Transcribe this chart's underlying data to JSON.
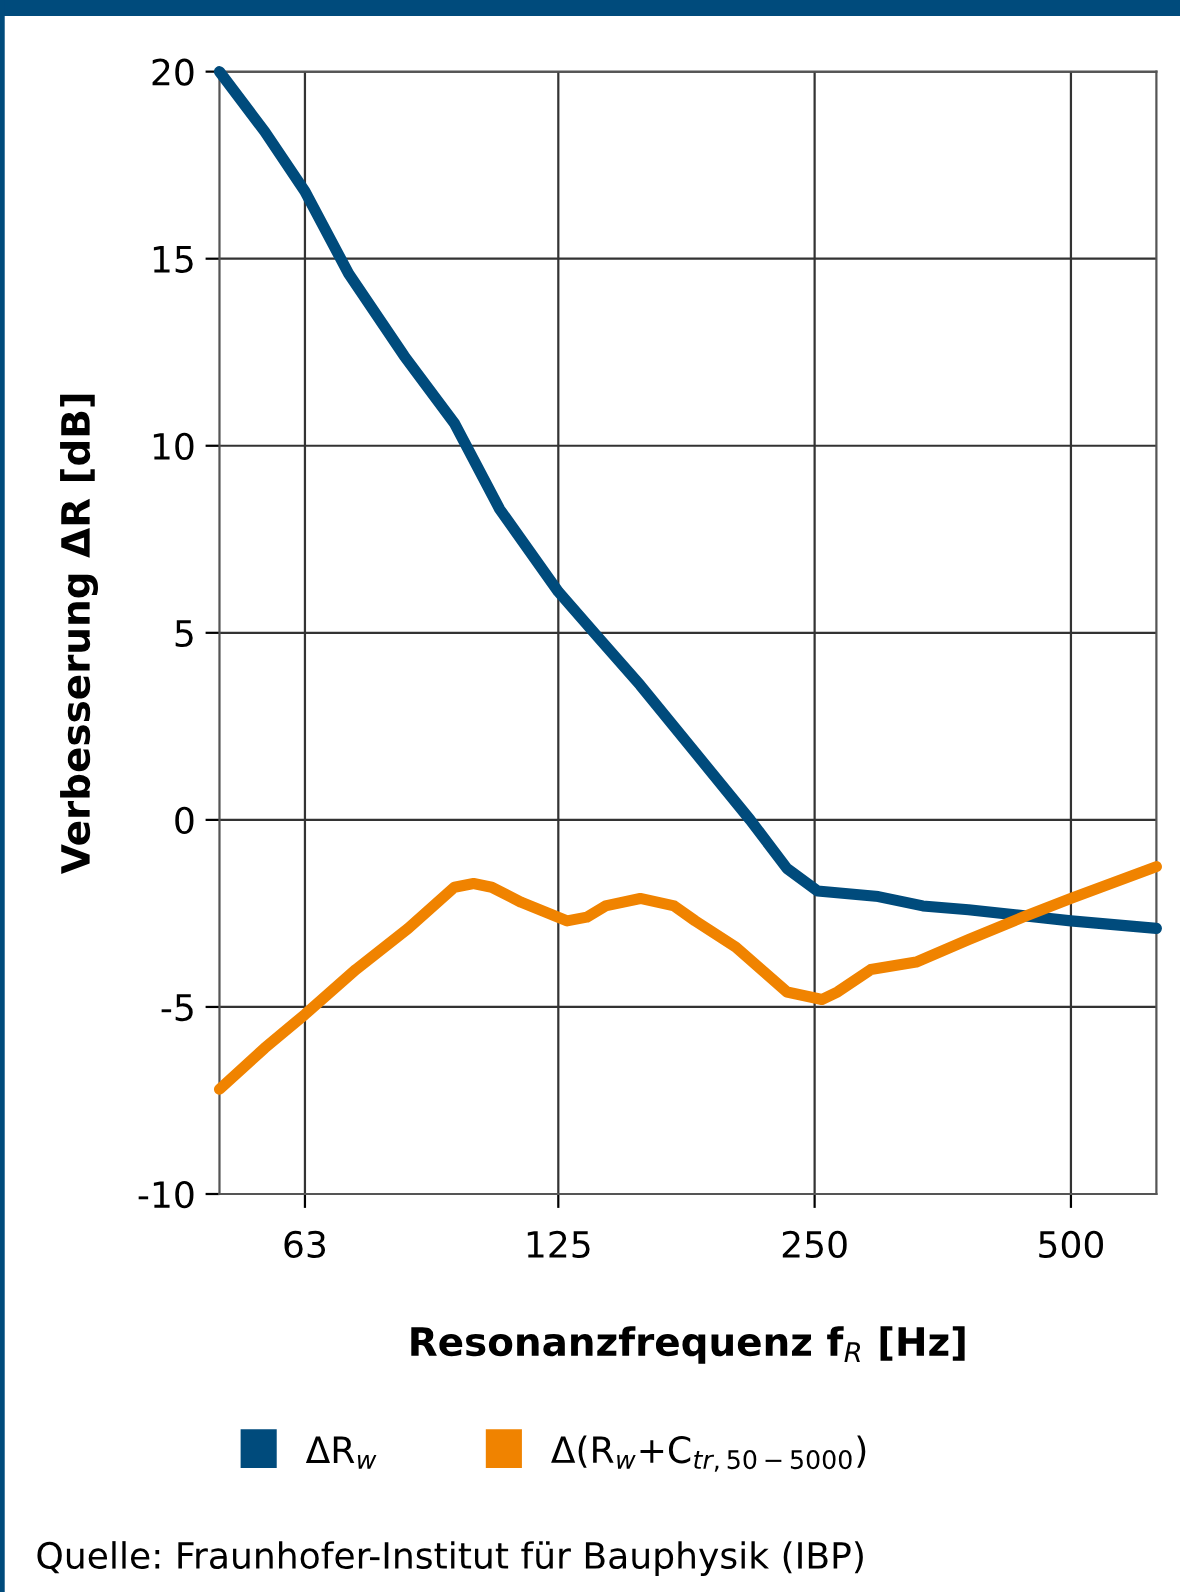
{
  "chart_data": {
    "type": "line",
    "xlabel": "Resonanzfrequenz f$_{R}$ [Hz]",
    "ylabel": "Verbesserung ΔR [dB]",
    "log": "x",
    "xlim": [
      50,
      630
    ],
    "xticks": [
      63,
      125,
      250,
      500
    ],
    "ylim": [
      -10,
      20
    ],
    "yticks": [
      -10,
      -5,
      0,
      5,
      10,
      15,
      20
    ],
    "grid": true,
    "legend": "bottom",
    "marker": "none",
    "line_style": "solid",
    "annotations": [
      "Quelle: Fraunhofer-Institut für Bauphysik (IBP)"
    ],
    "series": [
      {
        "name": "ΔR$_{w}$",
        "color": "#004b7c",
        "x": [
          50,
          56.5,
          63,
          70.9,
          82.4,
          94.4,
          106.7,
          125,
          139,
          156,
          181,
          210,
          232,
          252,
          297,
          335,
          379,
          500,
          630
        ],
        "values": [
          20,
          18.4,
          16.8,
          14.6,
          12.4,
          10.6,
          8.3,
          6.1,
          4.9,
          3.6,
          1.8,
          0,
          -1.3,
          -1.9,
          -2.05,
          -2.3,
          -2.4,
          -2.7,
          -2.9
        ]
      },
      {
        "name": "Δ(R$_{w}$+C$_{tr,50−5000}$)",
        "color": "#f08300",
        "x": [
          50,
          56.5,
          63,
          72.3,
          83.3,
          94.4,
          99.4,
          104.4,
          113,
          128,
          135,
          142,
          156,
          171,
          181,
          202,
          232,
          255,
          266,
          291,
          329,
          379,
          439,
          500,
          630
        ],
        "values": [
          -7.2,
          -6.1,
          -5.2,
          -4.0,
          -2.9,
          -1.8,
          -1.7,
          -1.8,
          -2.2,
          -2.7,
          -2.6,
          -2.3,
          -2.1,
          -2.3,
          -2.7,
          -3.4,
          -4.6,
          -4.8,
          -4.6,
          -4.0,
          -3.8,
          -3.2,
          -2.6,
          -2.1,
          -1.25
        ]
      }
    ]
  }
}
